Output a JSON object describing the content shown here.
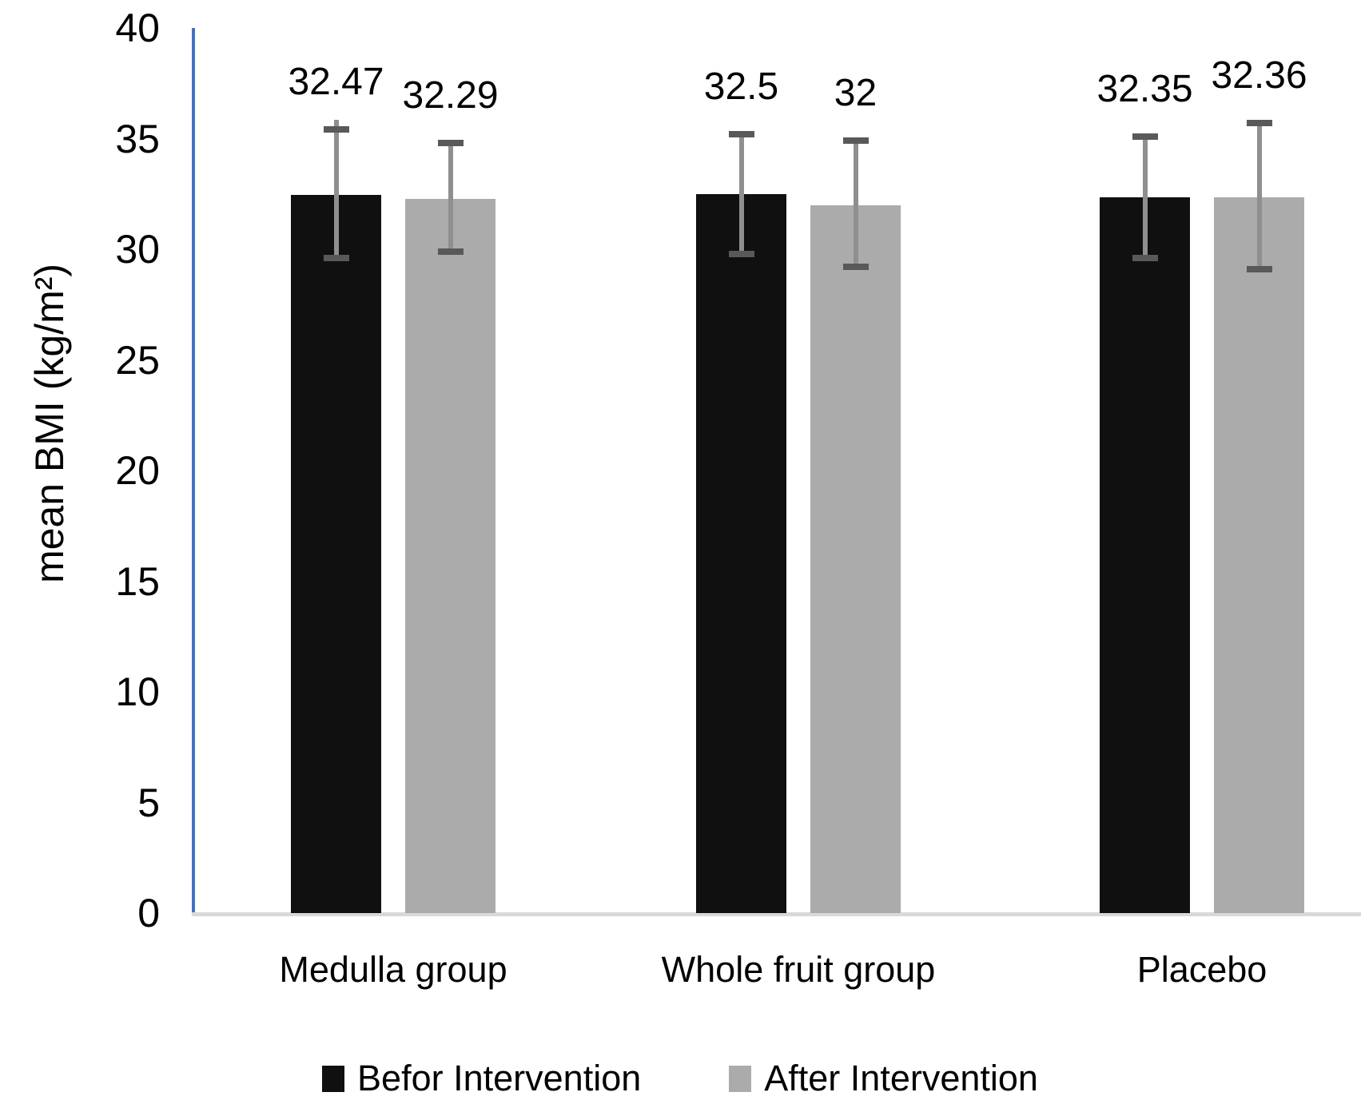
{
  "chart_data": {
    "type": "bar",
    "title": "",
    "ylabel": "mean BMI (kg/m²)",
    "xlabel": "",
    "categories": [
      "Medulla group",
      "Whole fruit group",
      "Placebo"
    ],
    "series": [
      {
        "name": "Befor Intervention",
        "color": "#101010",
        "values": [
          32.47,
          32.5,
          32.35
        ],
        "value_labels": [
          "32.47",
          "32.5",
          "32.35"
        ],
        "err_high": [
          35.4,
          35.2,
          35.1
        ],
        "err_low": [
          29.6,
          29.8,
          29.6
        ],
        "err_line_top_extra": [
          12,
          0,
          0
        ]
      },
      {
        "name": "After Intervention",
        "color": "#ABABAB",
        "values": [
          32.29,
          32.0,
          32.36
        ],
        "value_labels": [
          "32.29",
          "32",
          "32.36"
        ],
        "err_high": [
          34.8,
          34.9,
          35.7
        ],
        "err_low": [
          29.9,
          29.2,
          29.1
        ],
        "err_line_top_extra": [
          0,
          0,
          0
        ]
      }
    ],
    "ylim": [
      0,
      40
    ],
    "yticks": [
      "0",
      "5",
      "10",
      "15",
      "20",
      "25",
      "30",
      "35",
      "40"
    ],
    "grid": false,
    "legend_position": "bottom",
    "colors": {
      "y_axis_line": "#4472C4",
      "x_axis_line": "#D9D9D9",
      "error_bar_line": "#8F8F8F",
      "error_bar_cap": "#595959",
      "text": "#000000"
    }
  }
}
